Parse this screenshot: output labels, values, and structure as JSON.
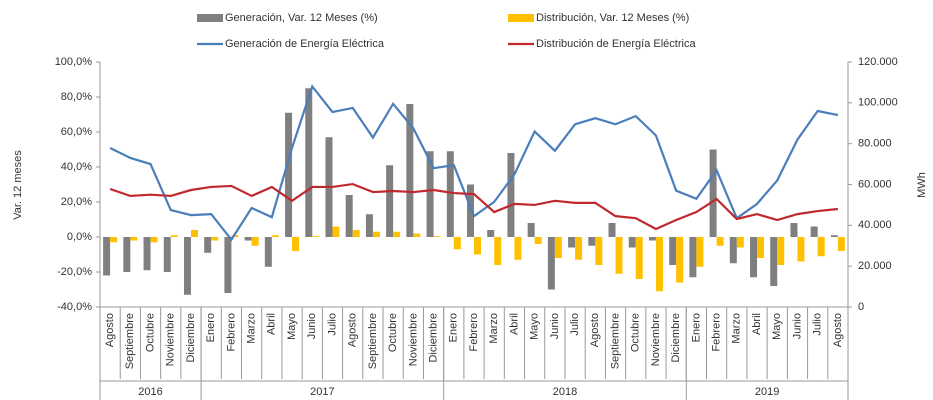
{
  "chart_data": {
    "type": "bar",
    "y_label": "Var. 12 meses",
    "y2_label": "MWh",
    "groups": [
      {
        "name": "2016",
        "categories": [
          "Agosto",
          "Septiembre",
          "Octubre",
          "Noviembre",
          "Diciembre"
        ]
      },
      {
        "name": "2017",
        "categories": [
          "Enero",
          "Febrero",
          "Marzo",
          "Abril",
          "Mayo",
          "Junio",
          "Julio",
          "Agosto",
          "Septiembre",
          "Octubre",
          "Noviembre",
          "Diciembre"
        ]
      },
      {
        "name": "2018",
        "categories": [
          "Enero",
          "Febrero",
          "Marzo",
          "Abril",
          "Mayo",
          "Junio",
          "Julio",
          "Agosto",
          "Septiembre",
          "Octubre",
          "Noviembre",
          "Diciembre"
        ]
      },
      {
        "name": "2019",
        "categories": [
          "Enero",
          "Febrero",
          "Marzo",
          "Abril",
          "Mayo",
          "Junio",
          "Julio",
          "Agosto"
        ]
      }
    ],
    "series": [
      {
        "name": "Generación, Var. 12 Meses (%)",
        "type": "bar",
        "color": "#7f7f7f",
        "values": [
          -22,
          -20,
          -19,
          -20,
          -33,
          -9,
          -32,
          -2,
          -17,
          71,
          85,
          57,
          24,
          13,
          41,
          76,
          49,
          49,
          30,
          4,
          48,
          8,
          -30,
          -6,
          -5,
          8,
          -6,
          -2,
          -16,
          -23,
          50,
          -15,
          -23,
          -28,
          8,
          6,
          1
        ]
      },
      {
        "name": "Distribución, Var. 12 Meses (%)",
        "type": "bar",
        "color": "#ffc000",
        "values": [
          -3,
          -2,
          -3,
          1,
          4,
          -2,
          1,
          -5,
          1,
          -8,
          0.5,
          6,
          4,
          3,
          3,
          2,
          0.5,
          -7,
          -10,
          -16,
          -13,
          -4,
          -12,
          -13,
          -16,
          -21,
          -24,
          -31,
          -26,
          -17,
          -5,
          -6,
          -12,
          -16,
          -14,
          -11,
          -8
        ]
      },
      {
        "name": "Generación de Energía Eléctrica",
        "type": "line",
        "axis": "y2",
        "color": "#4a7ebb",
        "values": [
          77900,
          73000,
          70000,
          47500,
          45000,
          45500,
          33000,
          48500,
          44000,
          78000,
          108000,
          95500,
          97500,
          83000,
          99500,
          87500,
          68000,
          69500,
          44500,
          51500,
          65000,
          86000,
          76500,
          89500,
          92500,
          89500,
          93500,
          84000,
          57000,
          53000,
          67000,
          43500,
          50500,
          62000,
          82000,
          96000,
          94000
        ]
      },
      {
        "name": "Distribución de Energía Eléctrica",
        "type": "line",
        "axis": "y2",
        "color": "#c0282d",
        "values": [
          57800,
          54400,
          55000,
          54400,
          57300,
          58800,
          59300,
          54400,
          58800,
          52000,
          58800,
          58800,
          60200,
          56300,
          56800,
          56300,
          57300,
          55800,
          55300,
          46500,
          50500,
          50000,
          52000,
          51000,
          51000,
          44500,
          43500,
          38200,
          42600,
          46500,
          52900,
          43100,
          45500,
          42600,
          45500,
          47000,
          48000
        ]
      }
    ],
    "ylim": [
      -40,
      100
    ],
    "yticks": [
      {
        "value": -40,
        "label": "-40,0%"
      },
      {
        "value": -20,
        "label": "-20,0%"
      },
      {
        "value": 0,
        "label": "0,0%"
      },
      {
        "value": 20,
        "label": "20,0%"
      },
      {
        "value": 40,
        "label": "40,0%"
      },
      {
        "value": 60,
        "label": "60,0%"
      },
      {
        "value": 80,
        "label": "80,0%"
      },
      {
        "value": 100,
        "label": "100,0%"
      }
    ],
    "y2lim": [
      0,
      120000
    ],
    "y2ticks": [
      0,
      {
        "value": 20000,
        "label": "20.000"
      },
      {
        "value": 40000,
        "label": "40.000"
      },
      {
        "value": 60000,
        "label": "60.000"
      },
      {
        "value": 80000,
        "label": "80.000"
      },
      {
        "value": 100000,
        "label": "100.000"
      },
      {
        "value": 120000,
        "label": "120.000"
      }
    ],
    "grid": false,
    "legend": "top"
  }
}
